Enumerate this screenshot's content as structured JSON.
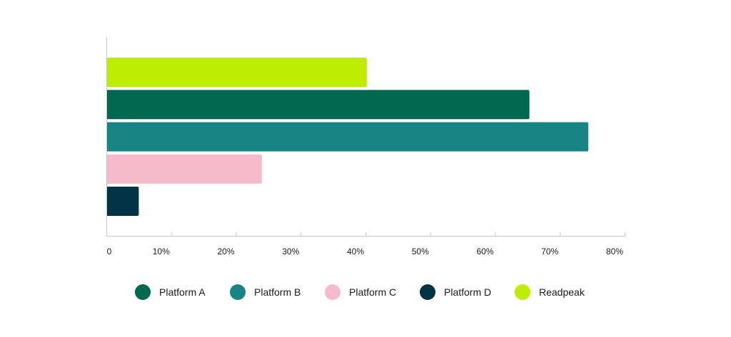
{
  "chart_data": {
    "type": "bar",
    "orientation": "horizontal",
    "title": "",
    "xlabel": "",
    "ylabel": "",
    "x_ticks": [
      "0",
      "10%",
      "20%",
      "30%",
      "40%",
      "50%",
      "60%",
      "70%",
      "80%"
    ],
    "xlim": [
      0,
      80
    ],
    "grid": false,
    "legend_position": "bottom",
    "series": [
      {
        "name": "Readpeak",
        "value": 40.2,
        "color": "#bded00"
      },
      {
        "name": "Platform A",
        "value": 65.3,
        "color": "#00684f"
      },
      {
        "name": "Platform B",
        "value": 74.4,
        "color": "#168584"
      },
      {
        "name": "Platform C",
        "value": 24.0,
        "color": "#f5bacb"
      },
      {
        "name": "Platform D",
        "value": 5.0,
        "color": "#003444"
      }
    ]
  },
  "legend": {
    "items": [
      {
        "label": "Platform A",
        "color": "#00684f"
      },
      {
        "label": "Platform B",
        "color": "#168584"
      },
      {
        "label": "Platform C",
        "color": "#f5bacb"
      },
      {
        "label": "Platform D",
        "color": "#003444"
      },
      {
        "label": "Readpeak",
        "color": "#bded00"
      }
    ]
  }
}
